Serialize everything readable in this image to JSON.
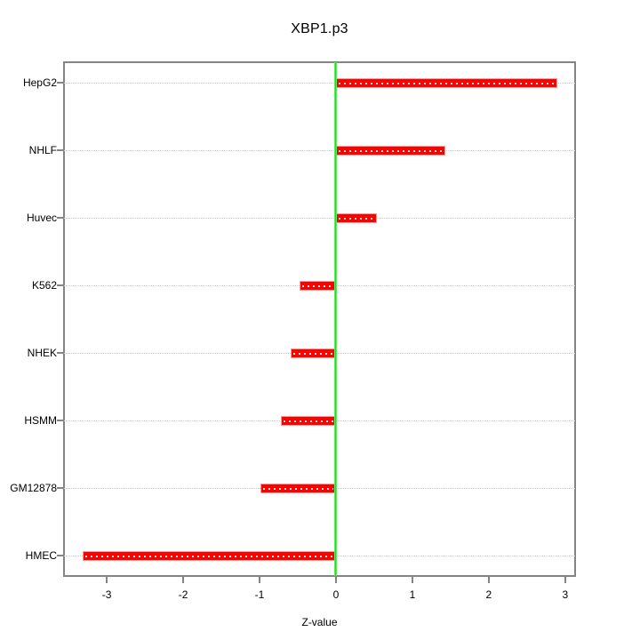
{
  "chart_data": {
    "type": "bar",
    "orientation": "horizontal",
    "title": "XBP1.p3",
    "xlabel": "Z-value",
    "ylabel": "",
    "categories": [
      "HepG2",
      "NHLF",
      "Huvec",
      "K562",
      "NHEK",
      "HSMM",
      "GM12878",
      "HMEC"
    ],
    "values": [
      2.9,
      1.43,
      0.53,
      -0.48,
      -0.59,
      -0.72,
      -0.99,
      -3.31
    ],
    "x_ticks": [
      "-3",
      "-2",
      "-1",
      "0",
      "1",
      "2",
      "3"
    ],
    "x_tick_values": [
      -3,
      -2,
      -1,
      0,
      1,
      2,
      3
    ],
    "xlim": [
      -3.56,
      3.13
    ],
    "zero_reference_line": 0,
    "grid": true,
    "legend": "none",
    "colors": {
      "bar": "#ff0000",
      "bar_edge": "#ff9999",
      "bar_stipple": "#ffffff",
      "zero_line": "#00e400",
      "gridline": "#c9c9c9",
      "box_border": "#848484",
      "text": "#000000",
      "background": "#ffffff"
    }
  }
}
